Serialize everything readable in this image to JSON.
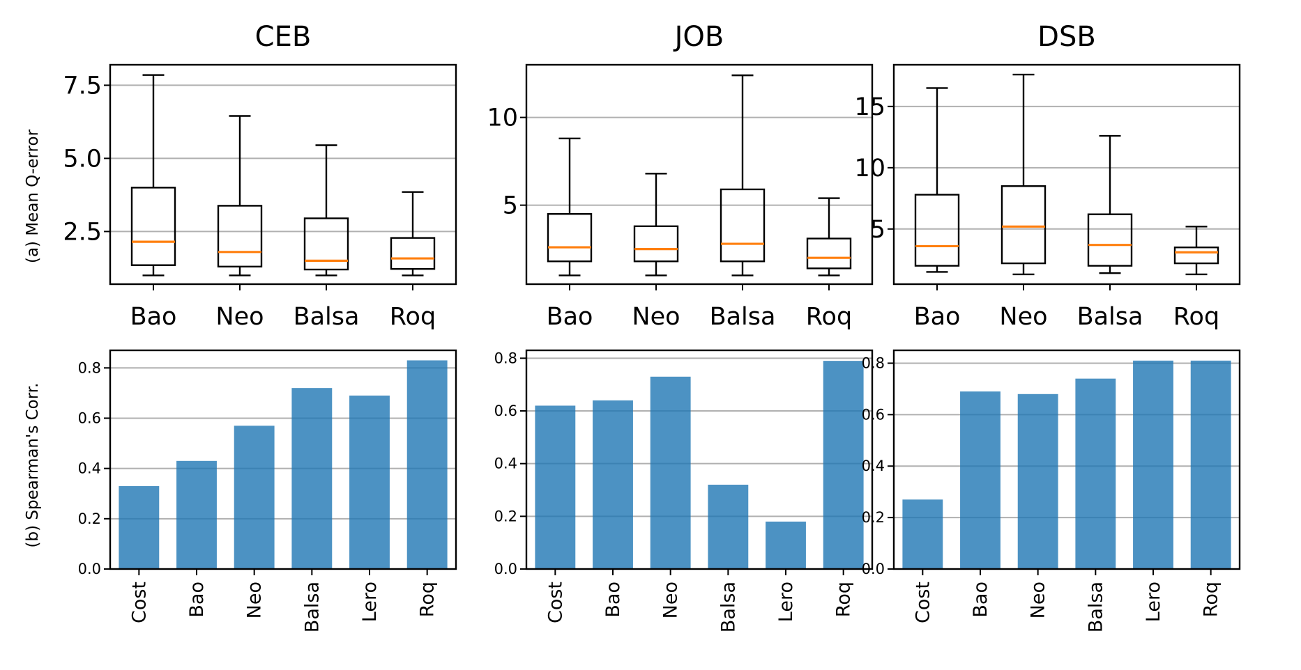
{
  "figure": {
    "row_a_ylabel": "(a) Mean Q-error",
    "row_b_ylabel": "(b) Spearman's Corr."
  },
  "colors": {
    "bar": "#1f77b4",
    "median": "#ff7f0e",
    "grid": "#b0b0b0"
  },
  "chart_data": [
    {
      "type": "box",
      "panel": "a",
      "title": "CEB",
      "categories": [
        "Bao",
        "Neo",
        "Balsa",
        "Roq"
      ],
      "ylim": [
        0.7,
        8.2
      ],
      "yticks": [
        2.5,
        5.0,
        7.5
      ],
      "ytick_labels": [
        "2.5",
        "5.0",
        "7.5"
      ],
      "grid": true,
      "boxes": [
        {
          "whislo": 1.0,
          "q1": 1.35,
          "med": 2.15,
          "q3": 4.0,
          "whishi": 7.85
        },
        {
          "whislo": 1.0,
          "q1": 1.3,
          "med": 1.8,
          "q3": 3.38,
          "whishi": 6.45
        },
        {
          "whislo": 1.0,
          "q1": 1.2,
          "med": 1.5,
          "q3": 2.95,
          "whishi": 5.45
        },
        {
          "whislo": 1.0,
          "q1": 1.22,
          "med": 1.58,
          "q3": 2.28,
          "whishi": 3.85
        }
      ]
    },
    {
      "type": "box",
      "panel": "a",
      "title": "JOB",
      "categories": [
        "Bao",
        "Neo",
        "Balsa",
        "Roq"
      ],
      "ylim": [
        0.5,
        13.0
      ],
      "yticks": [
        5,
        10
      ],
      "ytick_labels": [
        "5",
        "10"
      ],
      "grid": true,
      "boxes": [
        {
          "whislo": 1.0,
          "q1": 1.8,
          "med": 2.6,
          "q3": 4.5,
          "whishi": 8.8
        },
        {
          "whislo": 1.0,
          "q1": 1.8,
          "med": 2.5,
          "q3": 3.8,
          "whishi": 6.8
        },
        {
          "whislo": 1.0,
          "q1": 1.8,
          "med": 2.8,
          "q3": 5.9,
          "whishi": 12.4
        },
        {
          "whislo": 1.0,
          "q1": 1.4,
          "med": 2.0,
          "q3": 3.1,
          "whishi": 5.4
        }
      ]
    },
    {
      "type": "box",
      "panel": "a",
      "title": "DSB",
      "categories": [
        "Bao",
        "Neo",
        "Balsa",
        "Roq"
      ],
      "ylim": [
        0.5,
        18.4
      ],
      "yticks": [
        5,
        10,
        15
      ],
      "ytick_labels": [
        "5",
        "10",
        "15"
      ],
      "grid": true,
      "boxes": [
        {
          "whislo": 1.5,
          "q1": 2.0,
          "med": 3.6,
          "q3": 7.8,
          "whishi": 16.5
        },
        {
          "whislo": 1.3,
          "q1": 2.2,
          "med": 5.2,
          "q3": 8.5,
          "whishi": 17.6
        },
        {
          "whislo": 1.4,
          "q1": 2.0,
          "med": 3.7,
          "q3": 6.2,
          "whishi": 12.6
        },
        {
          "whislo": 1.3,
          "q1": 2.2,
          "med": 3.1,
          "q3": 3.5,
          "whishi": 5.2
        }
      ]
    },
    {
      "type": "bar",
      "panel": "b",
      "title": "CEB",
      "categories": [
        "Cost",
        "Bao",
        "Neo",
        "Balsa",
        "Lero",
        "Roq"
      ],
      "values": [
        0.33,
        0.43,
        0.57,
        0.72,
        0.69,
        0.83
      ],
      "ylim": [
        0,
        0.87
      ],
      "yticks": [
        0.0,
        0.2,
        0.4,
        0.6,
        0.8
      ],
      "ytick_labels": [
        "0.0",
        "0.2",
        "0.4",
        "0.6",
        "0.8"
      ],
      "grid": true
    },
    {
      "type": "bar",
      "panel": "b",
      "title": "JOB",
      "categories": [
        "Cost",
        "Bao",
        "Neo",
        "Balsa",
        "Lero",
        "Roq"
      ],
      "values": [
        0.62,
        0.64,
        0.73,
        0.32,
        0.18,
        0.79
      ],
      "ylim": [
        0,
        0.83
      ],
      "yticks": [
        0.0,
        0.2,
        0.4,
        0.6,
        0.8
      ],
      "ytick_labels": [
        "0.0",
        "0.2",
        "0.4",
        "0.6",
        "0.8"
      ],
      "grid": true
    },
    {
      "type": "bar",
      "panel": "b",
      "title": "DSB",
      "categories": [
        "Cost",
        "Bao",
        "Neo",
        "Balsa",
        "Lero",
        "Roq"
      ],
      "values": [
        0.27,
        0.69,
        0.68,
        0.74,
        0.81,
        0.81
      ],
      "ylim": [
        0,
        0.85
      ],
      "yticks": [
        0.0,
        0.2,
        0.4,
        0.6,
        0.8
      ],
      "ytick_labels": [
        "0.0",
        "0.2",
        "0.4",
        "0.6",
        "0.8"
      ],
      "grid": true
    }
  ]
}
